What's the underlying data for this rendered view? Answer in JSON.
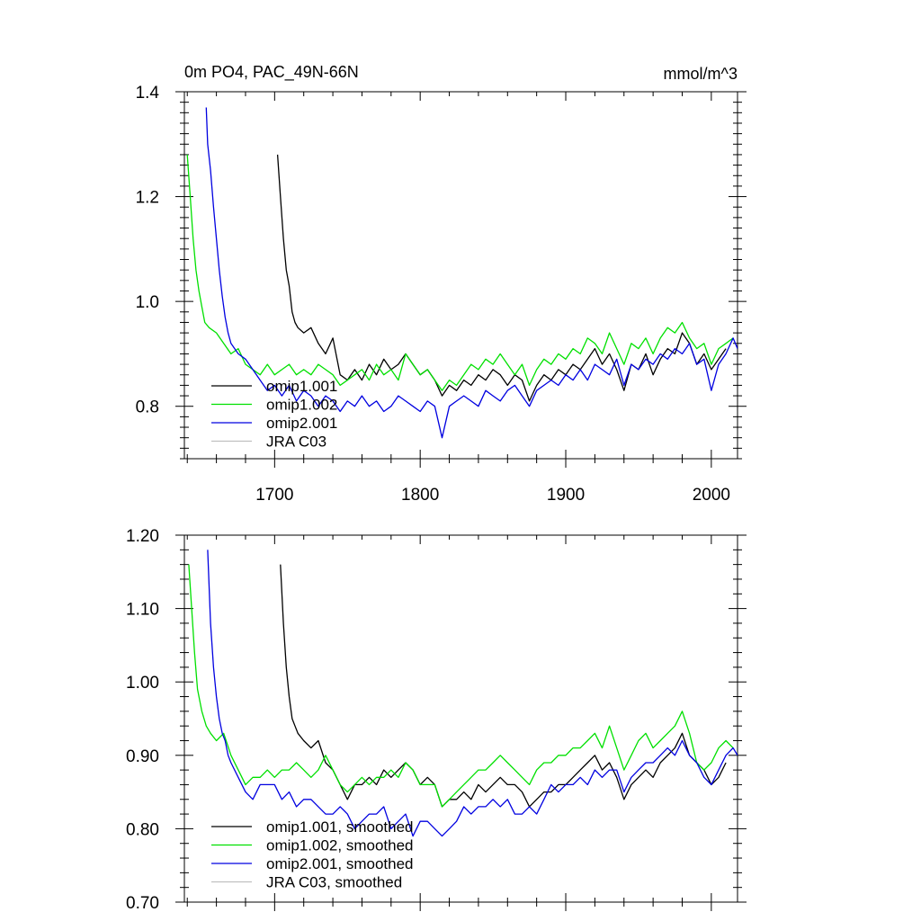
{
  "colors": {
    "omip1_001": "#000000",
    "omip1_002": "#00e000",
    "omip2_001": "#0000e0",
    "jra_c03": "#c0c0c0"
  },
  "chart_data": [
    {
      "type": "line",
      "title": "0m PO4, PAC_49N-66N",
      "units": "mmol/m^3",
      "xlim": [
        1638,
        2018
      ],
      "ylim": [
        0.7,
        1.4
      ],
      "xticks": [
        {
          "v": 1700,
          "label": "1700"
        },
        {
          "v": 1800,
          "label": "1800"
        },
        {
          "v": 1900,
          "label": "1900"
        },
        {
          "v": 2000,
          "label": "2000"
        }
      ],
      "yticks": [
        {
          "v": 0.8,
          "label": "0.8"
        },
        {
          "v": 1.0,
          "label": "1.0"
        },
        {
          "v": 1.2,
          "label": "1.2"
        },
        {
          "v": 1.4,
          "label": "1.4"
        }
      ],
      "legend_position": "bottom-left",
      "series": [
        {
          "key": "omip1_001",
          "name": "omip1.001",
          "x": [
            1702,
            1704,
            1706,
            1708,
            1710,
            1712,
            1714,
            1716,
            1720,
            1725,
            1730,
            1735,
            1740,
            1745,
            1750,
            1755,
            1760,
            1765,
            1770,
            1775,
            1780,
            1785,
            1790,
            1795,
            1800,
            1805,
            1810,
            1815,
            1820,
            1825,
            1830,
            1835,
            1840,
            1845,
            1850,
            1855,
            1860,
            1865,
            1870,
            1875,
            1880,
            1885,
            1890,
            1895,
            1900,
            1905,
            1910,
            1915,
            1920,
            1925,
            1930,
            1935,
            1940,
            1945,
            1950,
            1955,
            1960,
            1965,
            1970,
            1975,
            1980,
            1985,
            1990,
            1995,
            2000,
            2005,
            2010
          ],
          "y": [
            1.28,
            1.2,
            1.12,
            1.06,
            1.03,
            0.98,
            0.96,
            0.95,
            0.94,
            0.95,
            0.92,
            0.9,
            0.93,
            0.86,
            0.85,
            0.87,
            0.85,
            0.88,
            0.86,
            0.89,
            0.87,
            0.88,
            0.9,
            0.88,
            0.86,
            0.87,
            0.85,
            0.82,
            0.84,
            0.83,
            0.85,
            0.84,
            0.86,
            0.85,
            0.87,
            0.86,
            0.84,
            0.86,
            0.85,
            0.81,
            0.84,
            0.86,
            0.85,
            0.87,
            0.86,
            0.88,
            0.87,
            0.89,
            0.91,
            0.88,
            0.9,
            0.87,
            0.83,
            0.88,
            0.87,
            0.9,
            0.86,
            0.89,
            0.91,
            0.9,
            0.94,
            0.92,
            0.88,
            0.9,
            0.87,
            0.89,
            0.91
          ]
        },
        {
          "key": "omip1_002",
          "name": "omip1.002",
          "x": [
            1640,
            1642,
            1644,
            1646,
            1648,
            1650,
            1652,
            1655,
            1660,
            1665,
            1670,
            1675,
            1680,
            1685,
            1690,
            1695,
            1700,
            1705,
            1710,
            1715,
            1720,
            1725,
            1730,
            1735,
            1740,
            1745,
            1750,
            1755,
            1760,
            1765,
            1770,
            1775,
            1780,
            1785,
            1790,
            1795,
            1800,
            1805,
            1810,
            1815,
            1820,
            1825,
            1830,
            1835,
            1840,
            1845,
            1850,
            1855,
            1860,
            1865,
            1870,
            1875,
            1880,
            1885,
            1890,
            1895,
            1900,
            1905,
            1910,
            1915,
            1920,
            1925,
            1930,
            1935,
            1940,
            1945,
            1950,
            1955,
            1960,
            1965,
            1970,
            1975,
            1980,
            1985,
            1990,
            1995,
            2000,
            2005,
            2010,
            2015
          ],
          "y": [
            1.28,
            1.2,
            1.12,
            1.06,
            1.02,
            0.99,
            0.96,
            0.95,
            0.94,
            0.92,
            0.9,
            0.91,
            0.88,
            0.87,
            0.86,
            0.88,
            0.86,
            0.87,
            0.88,
            0.86,
            0.87,
            0.86,
            0.88,
            0.87,
            0.86,
            0.84,
            0.85,
            0.86,
            0.87,
            0.85,
            0.88,
            0.86,
            0.87,
            0.85,
            0.9,
            0.88,
            0.86,
            0.87,
            0.85,
            0.83,
            0.85,
            0.84,
            0.86,
            0.88,
            0.87,
            0.89,
            0.88,
            0.9,
            0.88,
            0.86,
            0.88,
            0.84,
            0.87,
            0.89,
            0.88,
            0.9,
            0.89,
            0.91,
            0.9,
            0.93,
            0.92,
            0.9,
            0.94,
            0.91,
            0.88,
            0.92,
            0.91,
            0.93,
            0.9,
            0.93,
            0.95,
            0.94,
            0.96,
            0.93,
            0.91,
            0.92,
            0.88,
            0.91,
            0.92,
            0.93
          ]
        },
        {
          "key": "omip2_001",
          "name": "omip2.001",
          "x": [
            1653,
            1654,
            1656,
            1658,
            1660,
            1662,
            1664,
            1666,
            1668,
            1670,
            1675,
            1680,
            1685,
            1690,
            1695,
            1700,
            1705,
            1710,
            1715,
            1720,
            1725,
            1730,
            1735,
            1740,
            1745,
            1750,
            1755,
            1760,
            1765,
            1770,
            1775,
            1780,
            1785,
            1790,
            1795,
            1800,
            1805,
            1810,
            1815,
            1820,
            1825,
            1830,
            1835,
            1840,
            1845,
            1850,
            1855,
            1860,
            1865,
            1870,
            1875,
            1880,
            1885,
            1890,
            1895,
            1900,
            1905,
            1910,
            1915,
            1920,
            1925,
            1930,
            1935,
            1940,
            1945,
            1950,
            1955,
            1960,
            1965,
            1970,
            1975,
            1980,
            1985,
            1990,
            1995,
            2000,
            2005,
            2010,
            2015,
            2018
          ],
          "y": [
            1.37,
            1.3,
            1.25,
            1.18,
            1.12,
            1.06,
            1.01,
            0.97,
            0.94,
            0.92,
            0.9,
            0.89,
            0.87,
            0.85,
            0.83,
            0.84,
            0.82,
            0.84,
            0.81,
            0.83,
            0.82,
            0.8,
            0.82,
            0.81,
            0.79,
            0.81,
            0.8,
            0.82,
            0.8,
            0.81,
            0.79,
            0.8,
            0.82,
            0.81,
            0.8,
            0.79,
            0.81,
            0.8,
            0.74,
            0.8,
            0.81,
            0.82,
            0.81,
            0.8,
            0.83,
            0.82,
            0.81,
            0.83,
            0.84,
            0.82,
            0.8,
            0.83,
            0.84,
            0.85,
            0.84,
            0.86,
            0.85,
            0.87,
            0.85,
            0.88,
            0.87,
            0.86,
            0.89,
            0.84,
            0.88,
            0.87,
            0.89,
            0.88,
            0.9,
            0.89,
            0.91,
            0.9,
            0.92,
            0.88,
            0.89,
            0.83,
            0.88,
            0.9,
            0.93,
            0.91
          ]
        },
        {
          "key": "jra_c03",
          "name": "JRA C03",
          "x": [],
          "y": []
        }
      ]
    },
    {
      "type": "line",
      "title": "",
      "xlim": [
        1638,
        2018
      ],
      "ylim": [
        0.7,
        1.2
      ],
      "xticks": [],
      "yticks": [
        {
          "v": 0.7,
          "label": "0.70"
        },
        {
          "v": 0.8,
          "label": "0.80"
        },
        {
          "v": 0.9,
          "label": "0.90"
        },
        {
          "v": 1.0,
          "label": "1.00"
        },
        {
          "v": 1.1,
          "label": "1.10"
        },
        {
          "v": 1.2,
          "label": "1.20"
        }
      ],
      "legend_position": "bottom-left",
      "series": [
        {
          "key": "omip1_001",
          "name": "omip1.001, smoothed",
          "x": [
            1704,
            1706,
            1708,
            1710,
            1712,
            1714,
            1716,
            1720,
            1725,
            1730,
            1735,
            1740,
            1745,
            1750,
            1755,
            1760,
            1765,
            1770,
            1775,
            1780,
            1785,
            1790,
            1795,
            1800,
            1805,
            1810,
            1815,
            1820,
            1825,
            1830,
            1835,
            1840,
            1845,
            1850,
            1855,
            1860,
            1865,
            1870,
            1875,
            1880,
            1885,
            1890,
            1895,
            1900,
            1905,
            1910,
            1915,
            1920,
            1925,
            1930,
            1935,
            1940,
            1945,
            1950,
            1955,
            1960,
            1965,
            1970,
            1975,
            1980,
            1985,
            1990,
            1995,
            2000,
            2005,
            2010
          ],
          "y": [
            1.16,
            1.08,
            1.02,
            0.98,
            0.95,
            0.94,
            0.93,
            0.92,
            0.91,
            0.92,
            0.89,
            0.88,
            0.86,
            0.84,
            0.86,
            0.86,
            0.87,
            0.86,
            0.88,
            0.87,
            0.88,
            0.89,
            0.88,
            0.86,
            0.87,
            0.86,
            0.83,
            0.84,
            0.84,
            0.85,
            0.84,
            0.86,
            0.85,
            0.86,
            0.87,
            0.86,
            0.86,
            0.85,
            0.83,
            0.84,
            0.85,
            0.85,
            0.86,
            0.86,
            0.87,
            0.88,
            0.89,
            0.9,
            0.88,
            0.89,
            0.87,
            0.84,
            0.86,
            0.87,
            0.88,
            0.87,
            0.89,
            0.9,
            0.91,
            0.93,
            0.9,
            0.89,
            0.88,
            0.86,
            0.87,
            0.89
          ]
        },
        {
          "key": "omip1_002",
          "name": "omip1.002, smoothed",
          "x": [
            1641,
            1643,
            1645,
            1647,
            1650,
            1653,
            1656,
            1660,
            1665,
            1670,
            1675,
            1680,
            1685,
            1690,
            1695,
            1700,
            1705,
            1710,
            1715,
            1720,
            1725,
            1730,
            1735,
            1740,
            1745,
            1750,
            1755,
            1760,
            1765,
            1770,
            1775,
            1780,
            1785,
            1790,
            1795,
            1800,
            1805,
            1810,
            1815,
            1820,
            1825,
            1830,
            1835,
            1840,
            1845,
            1850,
            1855,
            1860,
            1865,
            1870,
            1875,
            1880,
            1885,
            1890,
            1895,
            1900,
            1905,
            1910,
            1915,
            1920,
            1925,
            1930,
            1935,
            1940,
            1945,
            1950,
            1955,
            1960,
            1965,
            1970,
            1975,
            1980,
            1985,
            1990,
            1995,
            2000,
            2005,
            2010,
            2015
          ],
          "y": [
            1.16,
            1.1,
            1.04,
            0.99,
            0.96,
            0.94,
            0.93,
            0.92,
            0.93,
            0.9,
            0.88,
            0.86,
            0.87,
            0.87,
            0.88,
            0.87,
            0.88,
            0.88,
            0.89,
            0.88,
            0.87,
            0.88,
            0.9,
            0.88,
            0.86,
            0.85,
            0.86,
            0.87,
            0.86,
            0.87,
            0.87,
            0.88,
            0.87,
            0.89,
            0.88,
            0.86,
            0.86,
            0.86,
            0.83,
            0.84,
            0.85,
            0.86,
            0.87,
            0.88,
            0.88,
            0.89,
            0.9,
            0.89,
            0.88,
            0.87,
            0.86,
            0.88,
            0.89,
            0.89,
            0.9,
            0.9,
            0.91,
            0.91,
            0.92,
            0.93,
            0.91,
            0.94,
            0.91,
            0.88,
            0.9,
            0.92,
            0.93,
            0.91,
            0.92,
            0.93,
            0.94,
            0.96,
            0.93,
            0.89,
            0.88,
            0.89,
            0.91,
            0.92,
            0.91
          ]
        },
        {
          "key": "omip2_001",
          "name": "omip2.001, smoothed",
          "x": [
            1654,
            1656,
            1658,
            1660,
            1662,
            1664,
            1666,
            1668,
            1670,
            1675,
            1680,
            1685,
            1690,
            1695,
            1700,
            1705,
            1710,
            1715,
            1720,
            1725,
            1730,
            1735,
            1740,
            1745,
            1750,
            1755,
            1760,
            1765,
            1770,
            1775,
            1780,
            1785,
            1790,
            1795,
            1800,
            1805,
            1810,
            1815,
            1820,
            1825,
            1830,
            1835,
            1840,
            1845,
            1850,
            1855,
            1860,
            1865,
            1870,
            1875,
            1880,
            1885,
            1890,
            1895,
            1900,
            1905,
            1910,
            1915,
            1920,
            1925,
            1930,
            1935,
            1940,
            1945,
            1950,
            1955,
            1960,
            1965,
            1970,
            1975,
            1980,
            1985,
            1990,
            1995,
            2000,
            2005,
            2010,
            2015,
            2018
          ],
          "y": [
            1.18,
            1.08,
            1.02,
            0.98,
            0.95,
            0.93,
            0.92,
            0.9,
            0.89,
            0.87,
            0.85,
            0.84,
            0.86,
            0.86,
            0.86,
            0.84,
            0.85,
            0.83,
            0.84,
            0.84,
            0.83,
            0.82,
            0.82,
            0.83,
            0.82,
            0.8,
            0.81,
            0.82,
            0.82,
            0.83,
            0.8,
            0.81,
            0.82,
            0.79,
            0.81,
            0.81,
            0.8,
            0.79,
            0.8,
            0.81,
            0.83,
            0.82,
            0.83,
            0.83,
            0.84,
            0.83,
            0.84,
            0.82,
            0.82,
            0.83,
            0.82,
            0.84,
            0.86,
            0.85,
            0.86,
            0.86,
            0.87,
            0.86,
            0.88,
            0.87,
            0.88,
            0.88,
            0.85,
            0.87,
            0.88,
            0.89,
            0.89,
            0.9,
            0.91,
            0.9,
            0.92,
            0.9,
            0.89,
            0.87,
            0.86,
            0.88,
            0.9,
            0.91,
            0.9
          ]
        },
        {
          "key": "jra_c03",
          "name": "JRA C03, smoothed",
          "x": [],
          "y": []
        }
      ]
    }
  ]
}
